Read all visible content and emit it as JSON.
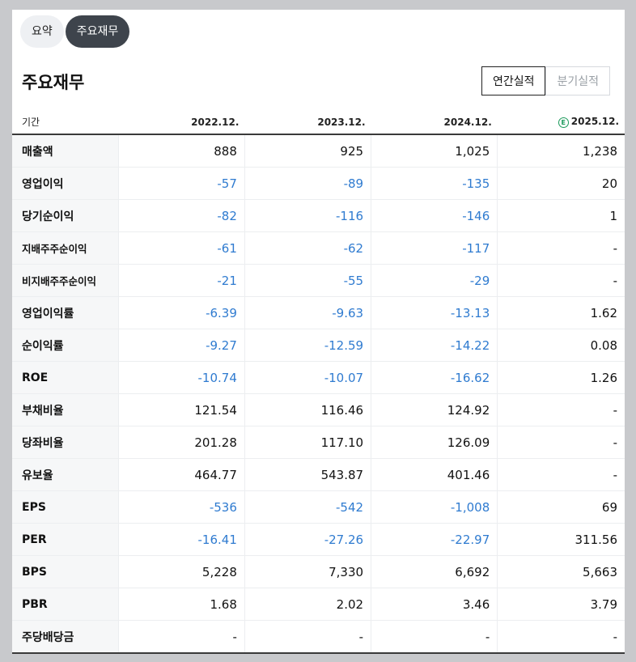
{
  "tabs": [
    {
      "label": "요약",
      "active": false
    },
    {
      "label": "주요재무",
      "active": true
    }
  ],
  "title": "주요재무",
  "period_toggle": {
    "annual": "연간실적",
    "quarterly": "분기실적",
    "selected": "annual"
  },
  "table": {
    "period_header": "기간",
    "columns": [
      "2022.12.",
      "2023.12.",
      "2024.12.",
      "2025.12."
    ],
    "estimate_marker": "E",
    "estimate_column": 3,
    "rows": [
      {
        "label": "매출액",
        "values": [
          "888",
          "925",
          "1,025",
          "1,238"
        ]
      },
      {
        "label": "영업이익",
        "values": [
          "-57",
          "-89",
          "-135",
          "20"
        ]
      },
      {
        "label": "당기순이익",
        "values": [
          "-82",
          "-116",
          "-146",
          "1"
        ]
      },
      {
        "label": "지배주주순이익",
        "values": [
          "-61",
          "-62",
          "-117",
          "-"
        ]
      },
      {
        "label": "비지배주주순이익",
        "values": [
          "-21",
          "-55",
          "-29",
          "-"
        ]
      },
      {
        "label": "영업이익률",
        "values": [
          "-6.39",
          "-9.63",
          "-13.13",
          "1.62"
        ]
      },
      {
        "label": "순이익률",
        "values": [
          "-9.27",
          "-12.59",
          "-14.22",
          "0.08"
        ]
      },
      {
        "label": "ROE",
        "values": [
          "-10.74",
          "-10.07",
          "-16.62",
          "1.26"
        ]
      },
      {
        "label": "부채비율",
        "values": [
          "121.54",
          "116.46",
          "124.92",
          "-"
        ]
      },
      {
        "label": "당좌비율",
        "values": [
          "201.28",
          "117.10",
          "126.09",
          "-"
        ]
      },
      {
        "label": "유보율",
        "values": [
          "464.77",
          "543.87",
          "401.46",
          "-"
        ]
      },
      {
        "label": "EPS",
        "values": [
          "-536",
          "-542",
          "-1,008",
          "69"
        ]
      },
      {
        "label": "PER",
        "values": [
          "-16.41",
          "-27.26",
          "-22.97",
          "311.56"
        ]
      },
      {
        "label": "BPS",
        "values": [
          "5,228",
          "7,330",
          "6,692",
          "5,663"
        ]
      },
      {
        "label": "PBR",
        "values": [
          "1.68",
          "2.02",
          "3.46",
          "3.79"
        ]
      },
      {
        "label": "주당배당금",
        "values": [
          "-",
          "-",
          "-",
          "-"
        ]
      }
    ]
  },
  "colors": {
    "negative": "#2f7bd0",
    "estimate": "#1c9a5b",
    "active_tab": "#3e444c"
  }
}
